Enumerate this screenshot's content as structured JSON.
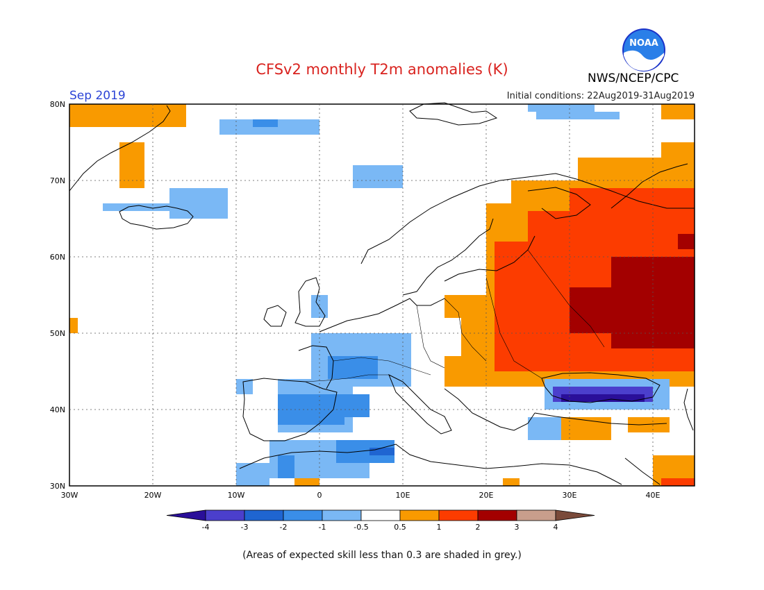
{
  "title": "CFSv2 monthly T2m anomalies (K)",
  "month": "Sep 2019",
  "initial_conditions": "Initial conditions: 22Aug2019-31Aug2019",
  "agency": "NWS/NCEP/CPC",
  "logo_text": "NOAA",
  "note": "(Areas of expected skill less than 0.3 are shaded in grey.)",
  "map": {
    "lon_ticks": [
      "30W",
      "20W",
      "10W",
      "0",
      "10E",
      "20E",
      "30E",
      "40E"
    ],
    "lat_ticks": [
      "80N",
      "70N",
      "60N",
      "50N",
      "40N",
      "30N"
    ],
    "lon_range": [
      -30,
      45
    ],
    "lat_range": [
      30,
      80
    ]
  },
  "legend": {
    "labels": [
      "-4",
      "-3",
      "-2",
      "-1",
      "-0.5",
      "0.5",
      "1",
      "2",
      "3",
      "4"
    ],
    "colors": [
      "#2a0f99",
      "#4b3fcc",
      "#1f65d1",
      "#3a8ee8",
      "#7ab8f5",
      "#ffffff",
      "#f99a00",
      "#fc3c00",
      "#a30000",
      "#c89e8c",
      "#7a4a3a"
    ]
  },
  "colors": {
    "warm1": "#f99a00",
    "warm2": "#fc3c00",
    "warm3": "#a30000",
    "cool1": "#7ab8f5",
    "cool2": "#3a8ee8",
    "cool3": "#1f65d1",
    "cool4": "#4b3fcc",
    "cool5": "#2a0f99"
  }
}
